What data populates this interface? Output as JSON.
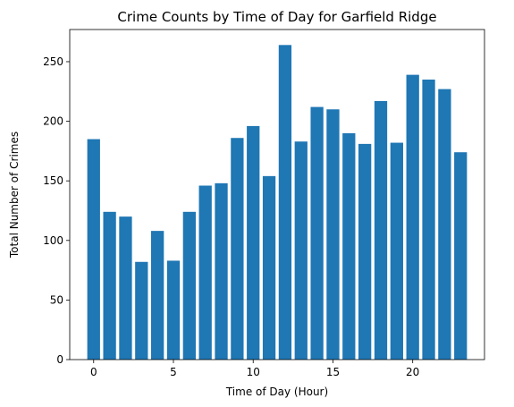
{
  "chart_data": {
    "type": "bar",
    "title": "Crime Counts by Time of Day for Garfield Ridge",
    "xlabel": "Time of Day (Hour)",
    "ylabel": "Total Number of Crimes",
    "x": [
      0,
      1,
      2,
      3,
      4,
      5,
      6,
      7,
      8,
      9,
      10,
      11,
      12,
      13,
      14,
      15,
      16,
      17,
      18,
      19,
      20,
      21,
      22,
      23
    ],
    "values": [
      185,
      124,
      120,
      82,
      108,
      83,
      124,
      146,
      148,
      186,
      196,
      154,
      264,
      183,
      212,
      210,
      190,
      181,
      217,
      182,
      239,
      235,
      227,
      174
    ],
    "xlim": [
      -1.5,
      24.5
    ],
    "ylim": [
      0,
      277
    ],
    "xticks": [
      0,
      5,
      10,
      15,
      20
    ],
    "yticks": [
      0,
      50,
      100,
      150,
      200,
      250
    ],
    "bar_color": "#1f77b4",
    "grid": false,
    "legend": "none"
  }
}
